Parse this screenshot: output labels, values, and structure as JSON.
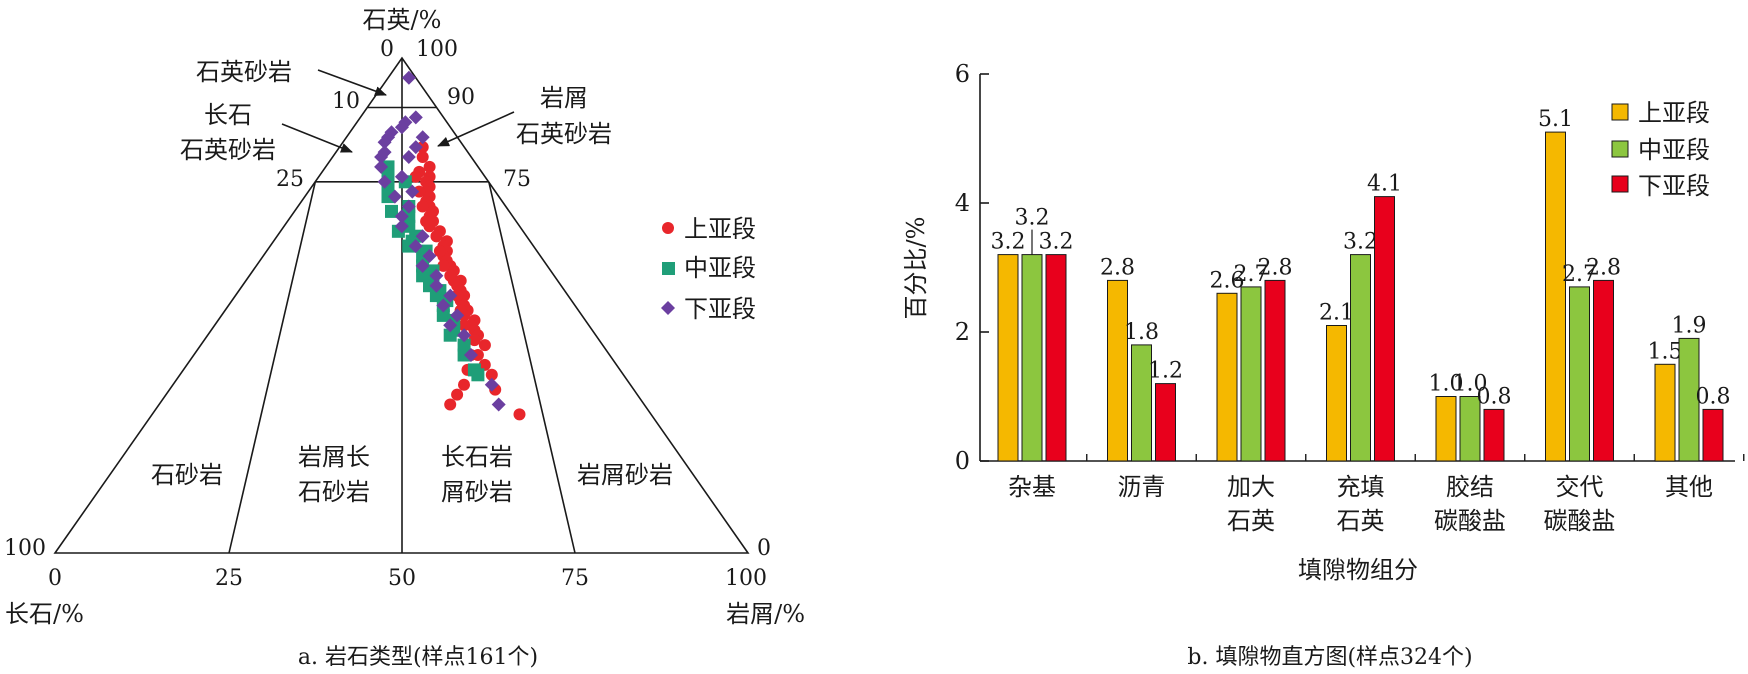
{
  "left_chart": {
    "caption": "a. 岩石类型(样点161个)",
    "apex_labels": {
      "quartz": "石英/%",
      "feldspar": "长石/%",
      "lithic": "岩屑/%"
    },
    "ticks": {
      "top_left": "0",
      "top_right": "100",
      "t10": "10",
      "t90": "90",
      "t25": "25",
      "t75": "75",
      "bl_100": "100",
      "br_0": "0",
      "b0": "0",
      "b25": "25",
      "b50": "50",
      "b75": "75",
      "b100": "100"
    },
    "region_labels": {
      "quartz_sandstone": "石英砂岩",
      "feldspathic_quartz_line1": "长石",
      "feldspathic_quartz_line2": "石英砂岩",
      "lithic_quartz_line1": "岩屑",
      "lithic_quartz_line2": "石英砂岩",
      "arkose": "石砂岩",
      "lithic_arkose_line1": "岩屑长",
      "lithic_arkose_line2": "石砂岩",
      "feldspathic_litharenite_line1": "长石岩",
      "feldspathic_litharenite_line2": "屑砂岩",
      "litharenite": "岩屑砂岩"
    },
    "legend": [
      "上亚段",
      "中亚段",
      "下亚段"
    ]
  },
  "chart_data": [
    {
      "type": "scatter",
      "subtype": "ternary",
      "title": "",
      "components": [
        "石英/%",
        "长石/%",
        "岩屑/%"
      ],
      "series": [
        {
          "name": "上亚段",
          "color": "#e8262b",
          "marker": "circle",
          "points": [
            [
              82,
              6,
              12
            ],
            [
              80,
              7,
              13
            ],
            [
              78,
              7,
              15
            ],
            [
              77,
              9,
              14
            ],
            [
              76,
              8,
              16
            ],
            [
              75,
              9,
              16
            ],
            [
              74,
              9,
              17
            ],
            [
              73,
              10,
              17
            ],
            [
              72,
              10,
              18
            ],
            [
              71,
              11,
              18
            ],
            [
              70,
              11,
              19
            ],
            [
              69,
              11,
              20
            ],
            [
              68,
              12,
              20
            ],
            [
              67,
              12,
              21
            ],
            [
              66,
              13,
              21
            ],
            [
              65,
              12,
              23
            ],
            [
              64,
              13,
              23
            ],
            [
              63,
              12,
              25
            ],
            [
              62,
              13,
              25
            ],
            [
              61,
              13,
              26
            ],
            [
              60,
              14,
              26
            ],
            [
              59,
              14,
              27
            ],
            [
              58,
              14,
              28
            ],
            [
              57,
              14,
              29
            ],
            [
              56,
              15,
              29
            ],
            [
              55,
              14,
              31
            ],
            [
              54,
              15,
              31
            ],
            [
              53,
              15,
              32
            ],
            [
              52,
              15,
              33
            ],
            [
              51,
              16,
              33
            ],
            [
              50,
              16,
              34
            ],
            [
              49,
              16,
              35
            ],
            [
              48,
              17,
              35
            ],
            [
              47,
              16,
              37
            ],
            [
              46,
              17,
              37
            ],
            [
              45,
              17,
              38
            ],
            [
              44,
              17,
              39
            ],
            [
              42,
              17,
              41
            ],
            [
              40,
              19,
              41
            ],
            [
              38,
              19,
              43
            ],
            [
              36,
              19,
              45
            ],
            [
              33,
              20,
              47
            ],
            [
              28,
              19,
              53
            ],
            [
              76,
              10,
              14
            ],
            [
              73,
              11,
              16
            ],
            [
              70,
              12,
              18
            ],
            [
              67,
              13,
              20
            ],
            [
              64,
              13,
              23
            ],
            [
              61,
              14,
              25
            ],
            [
              58,
              15,
              27
            ],
            [
              55,
              15,
              30
            ],
            [
              52,
              16,
              32
            ],
            [
              49,
              17,
              34
            ],
            [
              46,
              18,
              36
            ],
            [
              43,
              18,
              39
            ],
            [
              40,
              20,
              40
            ],
            [
              37,
              22,
              41
            ],
            [
              34,
              24,
              42
            ],
            [
              32,
              26,
              42
            ],
            [
              30,
              28,
              42
            ]
          ]
        },
        {
          "name": "中亚段",
          "color": "#1f9e78",
          "marker": "square",
          "points": [
            [
              78,
              13,
              9
            ],
            [
              76,
              14,
              10
            ],
            [
              75,
              12,
              13
            ],
            [
              74,
              15,
              11
            ],
            [
              72,
              16,
              12
            ],
            [
              70,
              14,
              16
            ],
            [
              69,
              17,
              14
            ],
            [
              68,
              15,
              17
            ],
            [
              66,
              16,
              18
            ],
            [
              65,
              18,
              17
            ],
            [
              64,
              16,
              20
            ],
            [
              63,
              17,
              20
            ],
            [
              62,
              18,
              20
            ],
            [
              61,
              16,
              23
            ],
            [
              60,
              17,
              23
            ],
            [
              58,
              18,
              24
            ],
            [
              57,
              17,
              26
            ],
            [
              56,
              19,
              25
            ],
            [
              55,
              18,
              27
            ],
            [
              54,
              19,
              27
            ],
            [
              53,
              18,
              29
            ],
            [
              52,
              19,
              29
            ],
            [
              51,
              18,
              31
            ],
            [
              50,
              19,
              31
            ],
            [
              48,
              20,
              32
            ],
            [
              47,
              19,
              34
            ],
            [
              45,
              20,
              35
            ],
            [
              44,
              21,
              35
            ],
            [
              42,
              20,
              38
            ],
            [
              40,
              21,
              39
            ],
            [
              37,
              21,
              42
            ],
            [
              36,
              21,
              43
            ]
          ]
        },
        {
          "name": "下亚段",
          "color": "#6b3fa0",
          "marker": "diamond",
          "points": [
            [
              96,
              1,
              3
            ],
            [
              88,
              4,
              8
            ],
            [
              87,
              6,
              7
            ],
            [
              86,
              7,
              7
            ],
            [
              85,
              9,
              6
            ],
            [
              84,
              10,
              6
            ],
            [
              84,
              5,
              11
            ],
            [
              83,
              11,
              6
            ],
            [
              82,
              7,
              11
            ],
            [
              81,
              12,
              7
            ],
            [
              80,
              13,
              7
            ],
            [
              80,
              9,
              11
            ],
            [
              78,
              14,
              8
            ],
            [
              76,
              12,
              12
            ],
            [
              75,
              15,
              10
            ],
            [
              73,
              12,
              15
            ],
            [
              72,
              15,
              13
            ],
            [
              70,
              14,
              16
            ],
            [
              68,
              16,
              16
            ],
            [
              66,
              17,
              17
            ],
            [
              64,
              15,
              21
            ],
            [
              62,
              17,
              21
            ],
            [
              60,
              16,
              24
            ],
            [
              58,
              18,
              24
            ],
            [
              56,
              17,
              27
            ],
            [
              54,
              18,
              28
            ],
            [
              52,
              17,
              31
            ],
            [
              50,
              19,
              31
            ],
            [
              48,
              18,
              34
            ],
            [
              46,
              20,
              34
            ],
            [
              44,
              19,
              37
            ],
            [
              40,
              20,
              40
            ],
            [
              34,
              20,
              46
            ],
            [
              30,
              21,
              49
            ]
          ]
        }
      ],
      "legend_placement": "right"
    },
    {
      "type": "bar",
      "title": "",
      "caption": "b. 填隙物直方图(样点324个)",
      "xlabel": "填隙物组分",
      "ylabel": "百分比/%",
      "ylim": [
        0,
        6
      ],
      "yticks": [
        "0",
        "2",
        "4",
        "6"
      ],
      "categories": [
        [
          "杂基"
        ],
        [
          "沥青"
        ],
        [
          "加大",
          "石英"
        ],
        [
          "充填",
          "石英"
        ],
        [
          "胶结",
          "碳酸盐"
        ],
        [
          "交代",
          "碳酸盐"
        ],
        [
          "其他"
        ]
      ],
      "series": [
        {
          "name": "上亚段",
          "color": "#f5b800",
          "values": [
            3.2,
            2.8,
            2.6,
            2.1,
            1.0,
            5.1,
            1.5
          ],
          "labels": [
            "3.2",
            "2.8",
            "2.6",
            "2.1",
            "1.0",
            "5.1",
            "1.5"
          ]
        },
        {
          "name": "中亚段",
          "color": "#8cc63f",
          "values": [
            3.2,
            1.8,
            2.7,
            3.2,
            1.0,
            2.7,
            1.9
          ],
          "labels": [
            "3.2",
            "1.8",
            "2.7",
            "3.2",
            "1.0",
            "2.7",
            "1.9"
          ]
        },
        {
          "name": "下亚段",
          "color": "#e8001c",
          "values": [
            3.2,
            1.2,
            2.8,
            4.1,
            0.8,
            2.8,
            0.8
          ],
          "labels": [
            "3.2",
            "1.2",
            "2.8",
            "4.1",
            "0.8",
            "2.8",
            "0.8"
          ]
        }
      ],
      "legend_placement": "top-right",
      "grid": false
    }
  ]
}
